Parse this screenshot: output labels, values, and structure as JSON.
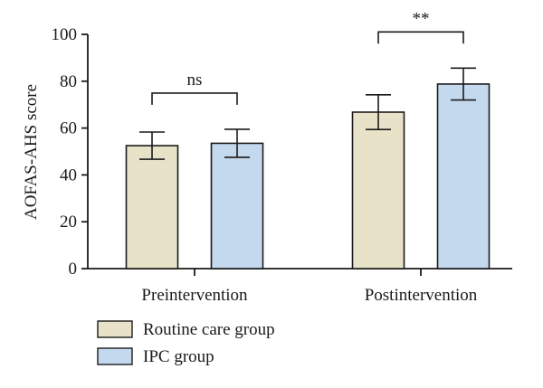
{
  "chart_data": {
    "type": "bar",
    "ylabel": "AOFAS-AHS score",
    "ylim": [
      0,
      100
    ],
    "yticks": [
      0,
      20,
      40,
      60,
      80,
      100
    ],
    "grid": false,
    "legend_position": "bottom-left",
    "categories": [
      "Preintervention",
      "Postintervention"
    ],
    "series": [
      {
        "name": "Routine care group",
        "color": "#e8e3c8",
        "values": [
          52.5,
          66.8
        ],
        "error": [
          5.8,
          7.4
        ]
      },
      {
        "name": "IPC group",
        "color": "#c5d9ee",
        "values": [
          53.5,
          78.8
        ],
        "error": [
          6.0,
          6.8
        ]
      }
    ],
    "significance": [
      {
        "category": "Preintervention",
        "label": "ns"
      },
      {
        "category": "Postintervention",
        "label": "**"
      }
    ]
  }
}
